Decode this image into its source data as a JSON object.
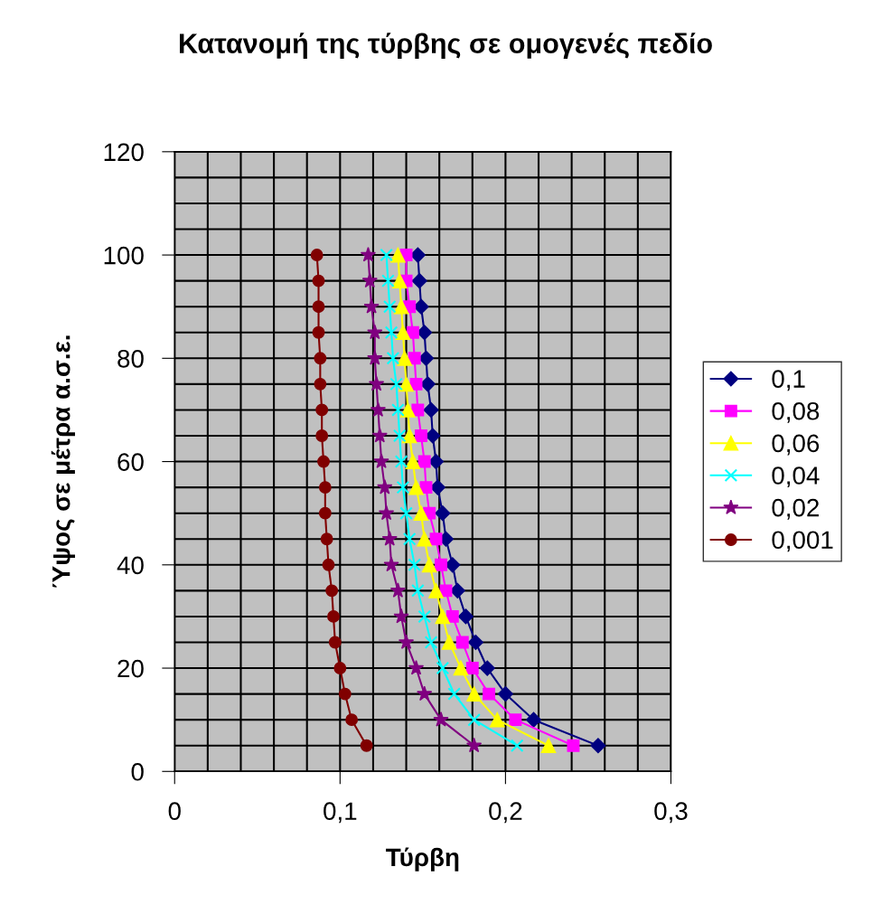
{
  "chart_data": {
    "type": "line",
    "title": "Κατανομή της τύρβης σε ομογενές πεδίο",
    "xlabel": "Τύρβη",
    "ylabel": "Ύψος σε μέτρα α.σ.ε.",
    "xlim": [
      0,
      0.3
    ],
    "ylim": [
      0,
      120
    ],
    "xticks": [
      0,
      {
        "value": 0.02,
        "label": null
      },
      {
        "value": 0.04,
        "label": null
      },
      {
        "value": 0.06,
        "label": null
      },
      {
        "value": 0.08,
        "label": null
      },
      {
        "value": 0.1,
        "label": "0,1"
      },
      {
        "value": 0.12,
        "label": null
      },
      {
        "value": 0.14,
        "label": null
      },
      {
        "value": 0.16,
        "label": null
      },
      {
        "value": 0.18,
        "label": null
      },
      {
        "value": 0.2,
        "label": "0,2"
      },
      {
        "value": 0.22,
        "label": null
      },
      {
        "value": 0.24,
        "label": null
      },
      {
        "value": 0.26,
        "label": null
      },
      {
        "value": 0.28,
        "label": null
      },
      {
        "value": 0.3,
        "label": "0,3"
      }
    ],
    "yticks": [
      0,
      {
        "value": 5,
        "label": null
      },
      {
        "value": 10,
        "label": null
      },
      {
        "value": 15,
        "label": null
      },
      20,
      {
        "value": 25,
        "label": null
      },
      {
        "value": 30,
        "label": null
      },
      {
        "value": 35,
        "label": null
      },
      40,
      {
        "value": 45,
        "label": null
      },
      {
        "value": 50,
        "label": null
      },
      {
        "value": 55,
        "label": null
      },
      60,
      {
        "value": 65,
        "label": null
      },
      {
        "value": 70,
        "label": null
      },
      {
        "value": 75,
        "label": null
      },
      80,
      {
        "value": 85,
        "label": null
      },
      {
        "value": 90,
        "label": null
      },
      {
        "value": 95,
        "label": null
      },
      100,
      {
        "value": 105,
        "label": null
      },
      {
        "value": 110,
        "label": null
      },
      {
        "value": 115,
        "label": null
      },
      120
    ],
    "grid": true,
    "legend": "right",
    "line_style": "solid",
    "series": [
      {
        "name": "0,1",
        "color": "#000080",
        "marker": "diamond",
        "x": [
          0.256,
          0.217,
          0.2,
          0.189,
          0.182,
          0.176,
          0.171,
          0.168,
          0.164,
          0.162,
          0.159,
          0.158,
          0.156,
          0.155,
          0.153,
          0.152,
          0.151,
          0.149,
          0.148,
          0.147
        ],
        "values": [
          5,
          10,
          15,
          20,
          25,
          30,
          35,
          40,
          45,
          50,
          55,
          60,
          65,
          70,
          75,
          80,
          85,
          90,
          95,
          100
        ]
      },
      {
        "name": "0,08",
        "color": "#ff00ff",
        "marker": "square",
        "x": [
          0.241,
          0.206,
          0.19,
          0.18,
          0.174,
          0.168,
          0.164,
          0.161,
          0.158,
          0.154,
          0.152,
          0.151,
          0.149,
          0.147,
          0.146,
          0.145,
          0.144,
          0.142,
          0.14,
          0.14
        ],
        "values": [
          5,
          10,
          15,
          20,
          25,
          30,
          35,
          40,
          45,
          50,
          55,
          60,
          65,
          70,
          75,
          80,
          85,
          90,
          95,
          100
        ]
      },
      {
        "name": "0,06",
        "color": "#ffff00",
        "marker": "triangle",
        "x": [
          0.226,
          0.195,
          0.181,
          0.173,
          0.166,
          0.162,
          0.158,
          0.154,
          0.151,
          0.149,
          0.146,
          0.144,
          0.142,
          0.141,
          0.14,
          0.139,
          0.138,
          0.137,
          0.136,
          0.135
        ],
        "values": [
          5,
          10,
          15,
          20,
          25,
          30,
          35,
          40,
          45,
          50,
          55,
          60,
          65,
          70,
          75,
          80,
          85,
          90,
          95,
          100
        ]
      },
      {
        "name": "0,04",
        "color": "#00ffff",
        "marker": "cross",
        "x": [
          0.207,
          0.181,
          0.169,
          0.162,
          0.155,
          0.151,
          0.147,
          0.145,
          0.142,
          0.14,
          0.138,
          0.137,
          0.136,
          0.135,
          0.134,
          0.132,
          0.131,
          0.13,
          0.129,
          0.128
        ],
        "values": [
          5,
          10,
          15,
          20,
          25,
          30,
          35,
          40,
          45,
          50,
          55,
          60,
          65,
          70,
          75,
          80,
          85,
          90,
          95,
          100
        ]
      },
      {
        "name": "0,02",
        "color": "#800080",
        "marker": "star",
        "x": [
          0.181,
          0.161,
          0.151,
          0.146,
          0.14,
          0.137,
          0.135,
          0.131,
          0.13,
          0.128,
          0.127,
          0.125,
          0.124,
          0.123,
          0.122,
          0.121,
          0.121,
          0.119,
          0.118,
          0.117
        ],
        "values": [
          5,
          10,
          15,
          20,
          25,
          30,
          35,
          40,
          45,
          50,
          55,
          60,
          65,
          70,
          75,
          80,
          85,
          90,
          95,
          100
        ]
      },
      {
        "name": "0,001",
        "color": "#800000",
        "marker": "circle",
        "x": [
          0.116,
          0.107,
          0.103,
          0.1,
          0.097,
          0.096,
          0.095,
          0.093,
          0.092,
          0.091,
          0.091,
          0.09,
          0.089,
          0.089,
          0.088,
          0.088,
          0.087,
          0.087,
          0.087,
          0.086
        ],
        "values": [
          5,
          10,
          15,
          20,
          25,
          30,
          35,
          40,
          45,
          50,
          55,
          60,
          65,
          70,
          75,
          80,
          85,
          90,
          95,
          100
        ]
      }
    ]
  }
}
